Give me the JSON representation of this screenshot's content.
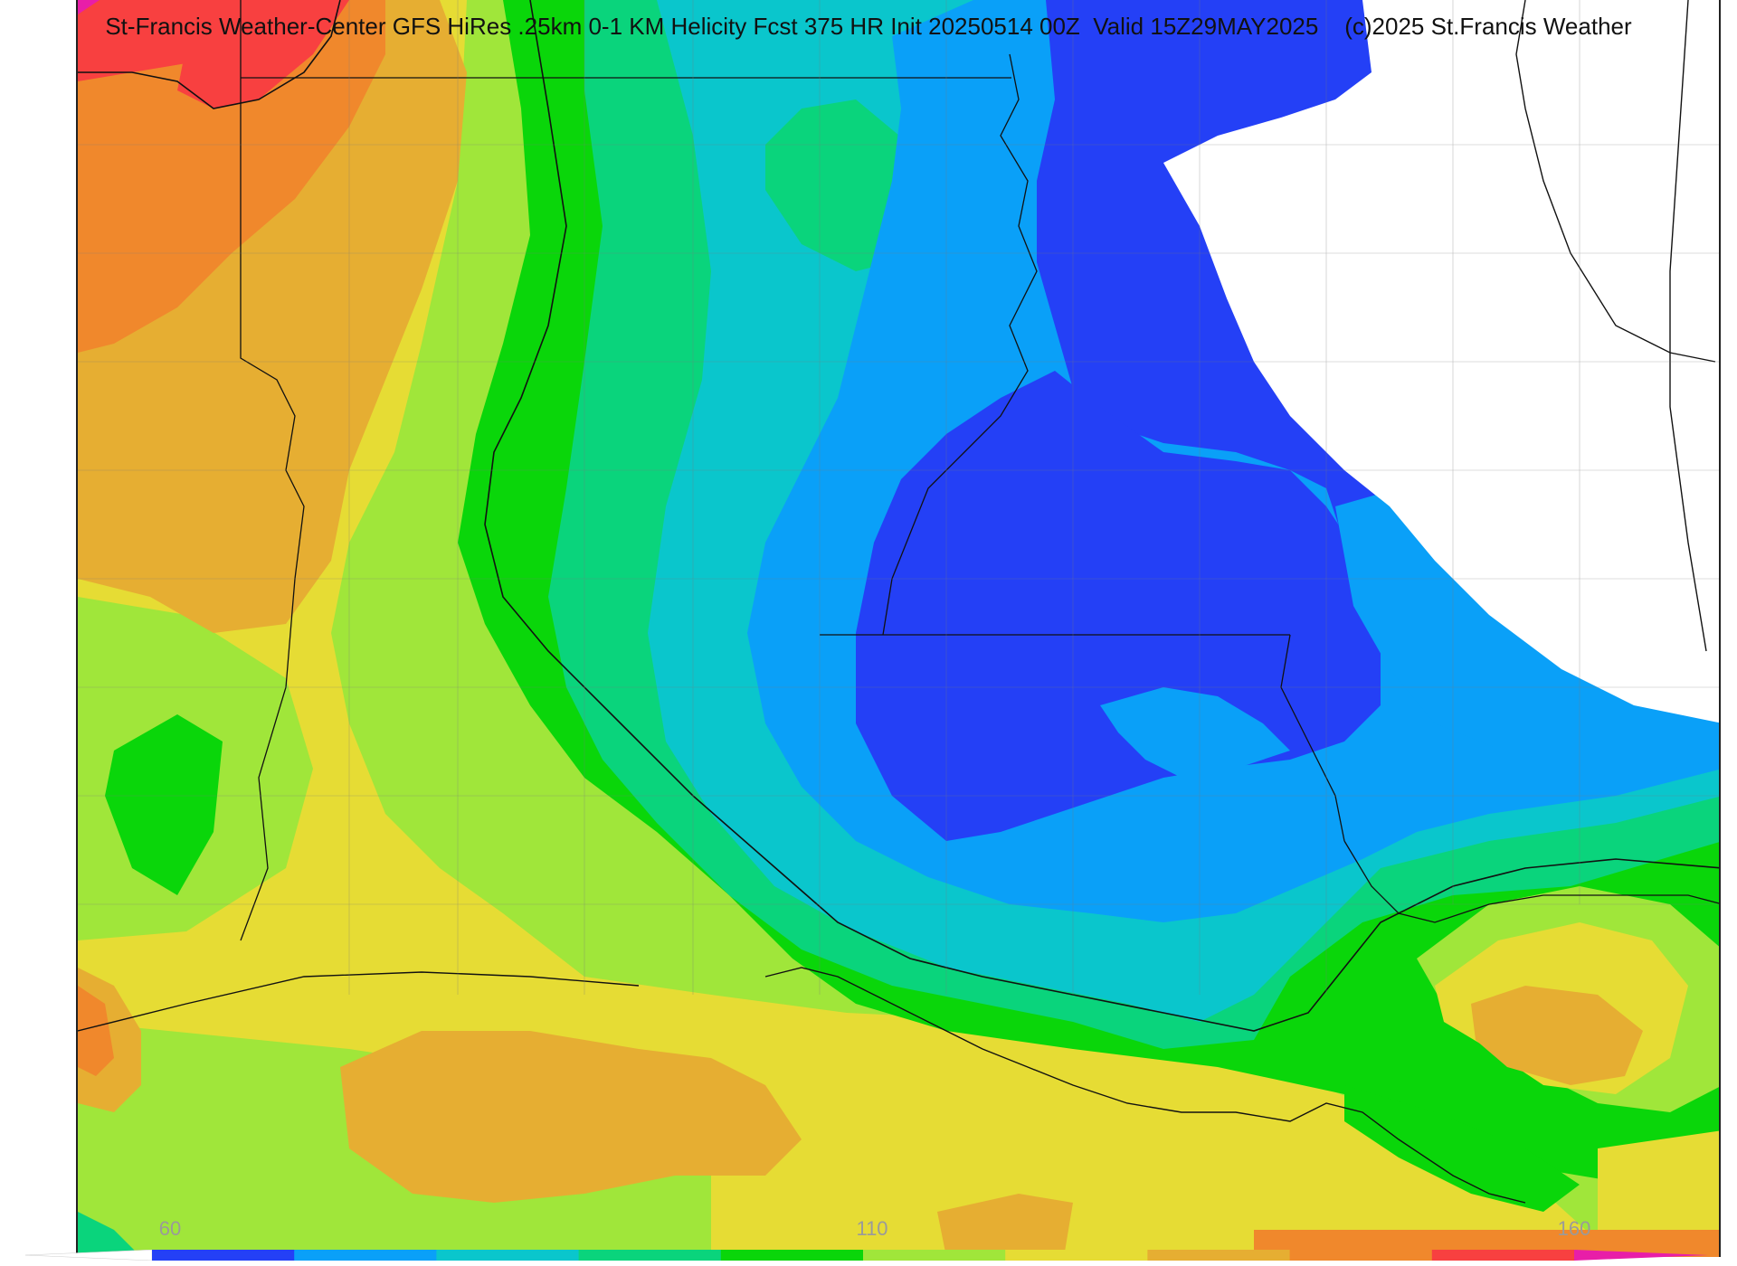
{
  "header": {
    "title": "St-Francis Weather-Center GFS HiRes .25km 0-1 KM Helicity Fcst 375 HR Init 20250514 00Z  Valid 15Z29MAY2025    (c)2025 St.Francis Weather"
  },
  "map": {
    "product": "0-1 KM Helicity",
    "model": "GFS HiRes .25km",
    "forecast_hour": 375,
    "init": "20250514 00Z",
    "valid": "15Z29MAY2025",
    "field_colors": {
      "white": "#ffffff",
      "blue_dark": "#2440f6",
      "blue": "#0aa0f8",
      "cyan": "#0ac6cc",
      "teal_green": "#0ad47c",
      "green": "#0ad60a",
      "light_green": "#a0e63a",
      "yellow": "#e6dc34",
      "gold": "#e6ae32",
      "orange": "#f0882c",
      "red": "#f84040",
      "magenta": "#e81ea8"
    }
  },
  "legend": {
    "tick_labels": [
      "60",
      "110",
      "160"
    ],
    "tick_values": [
      60,
      110,
      160
    ],
    "bins": [
      {
        "color": "#ffffff"
      },
      {
        "color": "#2440f6"
      },
      {
        "color": "#0aa0f8"
      },
      {
        "color": "#0ac6cc"
      },
      {
        "color": "#0ad47c"
      },
      {
        "color": "#0ad60a"
      },
      {
        "color": "#a0e63a"
      },
      {
        "color": "#e6dc34"
      },
      {
        "color": "#e6ae32"
      },
      {
        "color": "#f0882c"
      },
      {
        "color": "#f84040"
      },
      {
        "color": "#e81ea8"
      }
    ]
  }
}
